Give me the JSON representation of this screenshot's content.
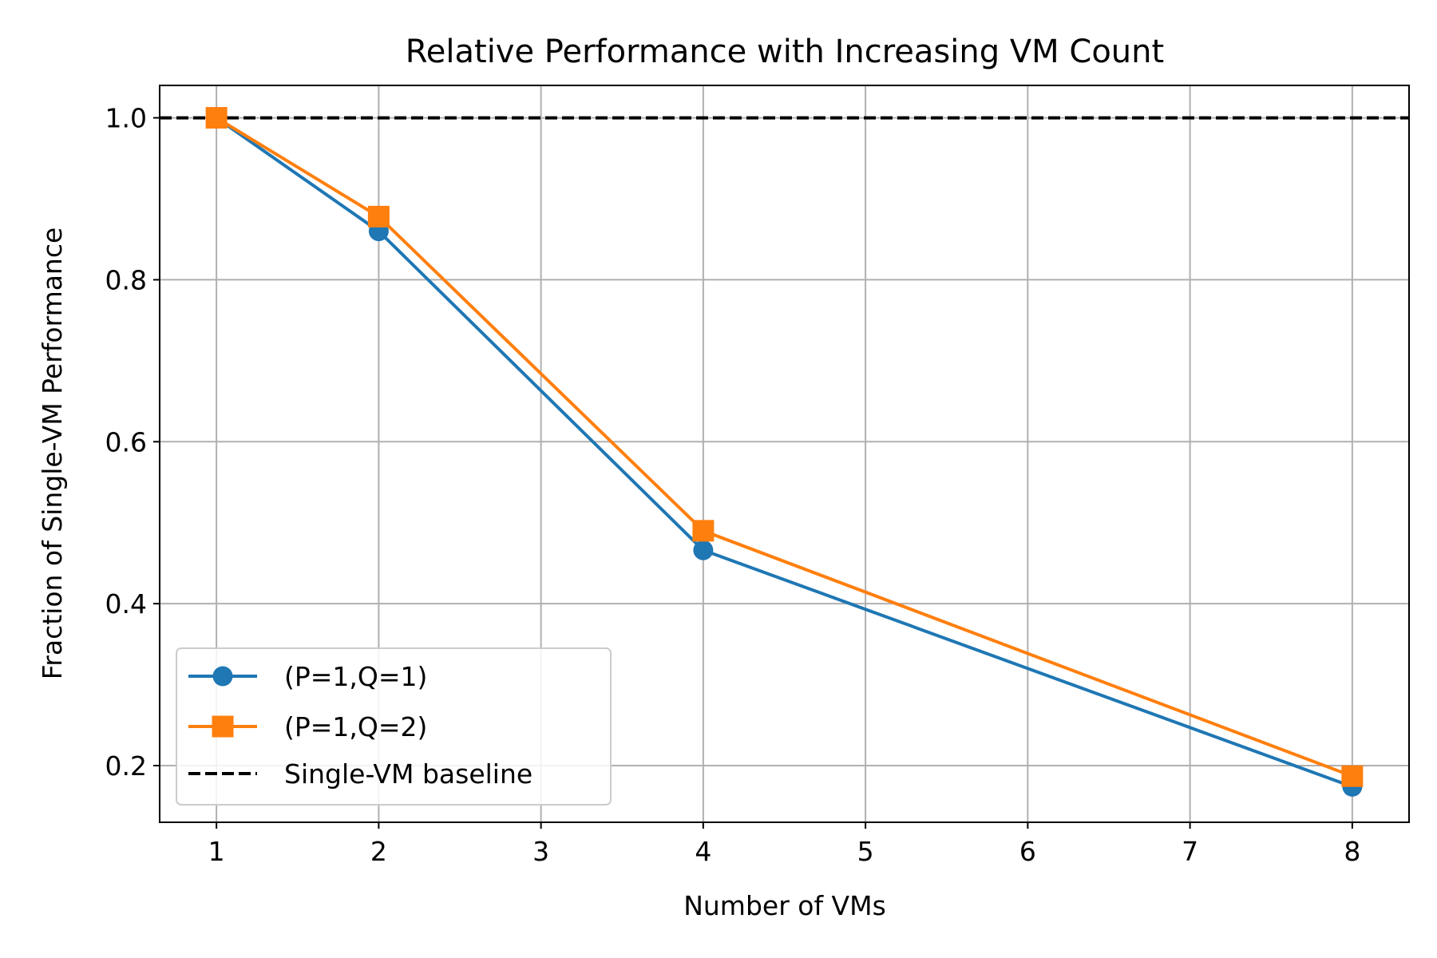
{
  "chart_data": {
    "type": "line",
    "title": "Relative Performance with Increasing VM Count",
    "xlabel": "Number of VMs",
    "ylabel": "Fraction of Single-VM Performance",
    "xlim": [
      0.65,
      8.35
    ],
    "ylim": [
      0.13,
      1.04
    ],
    "xticks": [
      1,
      2,
      3,
      4,
      5,
      6,
      7,
      8
    ],
    "yticks": [
      0.2,
      0.4,
      0.6,
      0.8,
      1.0
    ],
    "ytick_labels": [
      "0.2",
      "0.4",
      "0.6",
      "0.8",
      "1.0"
    ],
    "grid": true,
    "legend_position": "lower-left",
    "series": [
      {
        "name": "(P=1,Q=1)",
        "x": [
          1,
          2,
          4,
          8
        ],
        "y": [
          1.0,
          0.86,
          0.466,
          0.174
        ],
        "color": "#1f77b4",
        "marker": "circle",
        "linestyle": "solid"
      },
      {
        "name": "(P=1,Q=2)",
        "x": [
          1,
          2,
          4,
          8
        ],
        "y": [
          1.0,
          0.878,
          0.49,
          0.187
        ],
        "color": "#ff7f0e",
        "marker": "square",
        "linestyle": "solid"
      }
    ],
    "reference_lines": [
      {
        "name": "Single-VM baseline",
        "y": 1.0,
        "color": "#000000",
        "linestyle": "dashed"
      }
    ]
  }
}
